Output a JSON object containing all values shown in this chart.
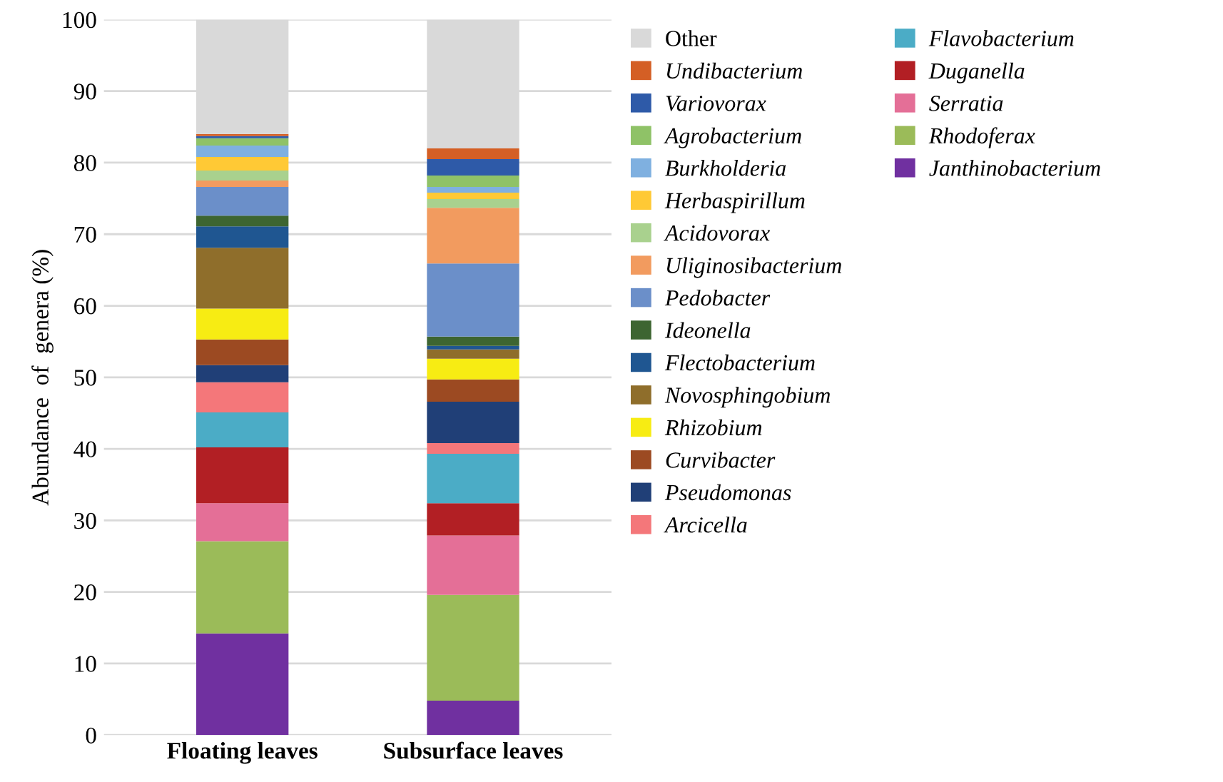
{
  "chart_data": {
    "type": "bar",
    "stacked": true,
    "ylabel": "Abundance  of  genera (%)",
    "categories": [
      "Floating leaves",
      "Subsurface leaves"
    ],
    "ylim": [
      0,
      100
    ],
    "yticks": [
      0,
      10,
      20,
      30,
      40,
      50,
      60,
      70,
      80,
      90,
      100
    ],
    "grid": "y",
    "legend": "right",
    "series": [
      {
        "name": "Janthinobacterium",
        "color": "#7030a0",
        "values": [
          14.2,
          4.8
        ]
      },
      {
        "name": "Rhodoferax",
        "color": "#9bbb59",
        "values": [
          12.9,
          14.8
        ]
      },
      {
        "name": "Serratia",
        "color": "#e46f97",
        "values": [
          5.3,
          8.3
        ]
      },
      {
        "name": "Duganella",
        "color": "#b21f24",
        "values": [
          7.8,
          4.5
        ]
      },
      {
        "name": "Flavobacterium",
        "color": "#4bacc6",
        "values": [
          4.9,
          6.9
        ]
      },
      {
        "name": "Arcicella",
        "color": "#f4777a",
        "values": [
          4.2,
          1.5
        ]
      },
      {
        "name": "Pseudomonas",
        "color": "#203f77",
        "values": [
          2.4,
          5.8
        ]
      },
      {
        "name": "Curvibacter",
        "color": "#9c4a22",
        "values": [
          3.6,
          3.1
        ]
      },
      {
        "name": "Rhizobium",
        "color": "#f7ec13",
        "values": [
          4.3,
          2.9
        ]
      },
      {
        "name": "Novosphingobium",
        "color": "#8f6e2b",
        "values": [
          8.5,
          1.3
        ]
      },
      {
        "name": "Flectobacterium",
        "color": "#1f5691",
        "values": [
          3.0,
          0.5
        ]
      },
      {
        "name": "Ideonella",
        "color": "#3d6531",
        "values": [
          1.5,
          1.3
        ]
      },
      {
        "name": "Pedobacter",
        "color": "#6b8fc9",
        "values": [
          4.0,
          10.2
        ]
      },
      {
        "name": "Uliginosibacterium",
        "color": "#f29b5f",
        "values": [
          0.9,
          7.8
        ]
      },
      {
        "name": "Acidovorax",
        "color": "#a9d18e",
        "values": [
          1.4,
          1.2
        ]
      },
      {
        "name": "Herbaspirillum",
        "color": "#ffc935",
        "values": [
          1.9,
          0.9
        ]
      },
      {
        "name": "Burkholderia",
        "color": "#7fb0e0",
        "values": [
          1.6,
          0.8
        ]
      },
      {
        "name": "Agrobacterium",
        "color": "#8fc267",
        "values": [
          1.0,
          1.6
        ]
      },
      {
        "name": "Variovorax",
        "color": "#2e5aa8",
        "values": [
          0.3,
          2.3
        ]
      },
      {
        "name": "Undibacterium",
        "color": "#d45f25",
        "values": [
          0.3,
          1.5
        ]
      },
      {
        "name": "Other",
        "color": "#d9d9d9",
        "values": [
          16.0,
          18.0
        ]
      }
    ]
  }
}
